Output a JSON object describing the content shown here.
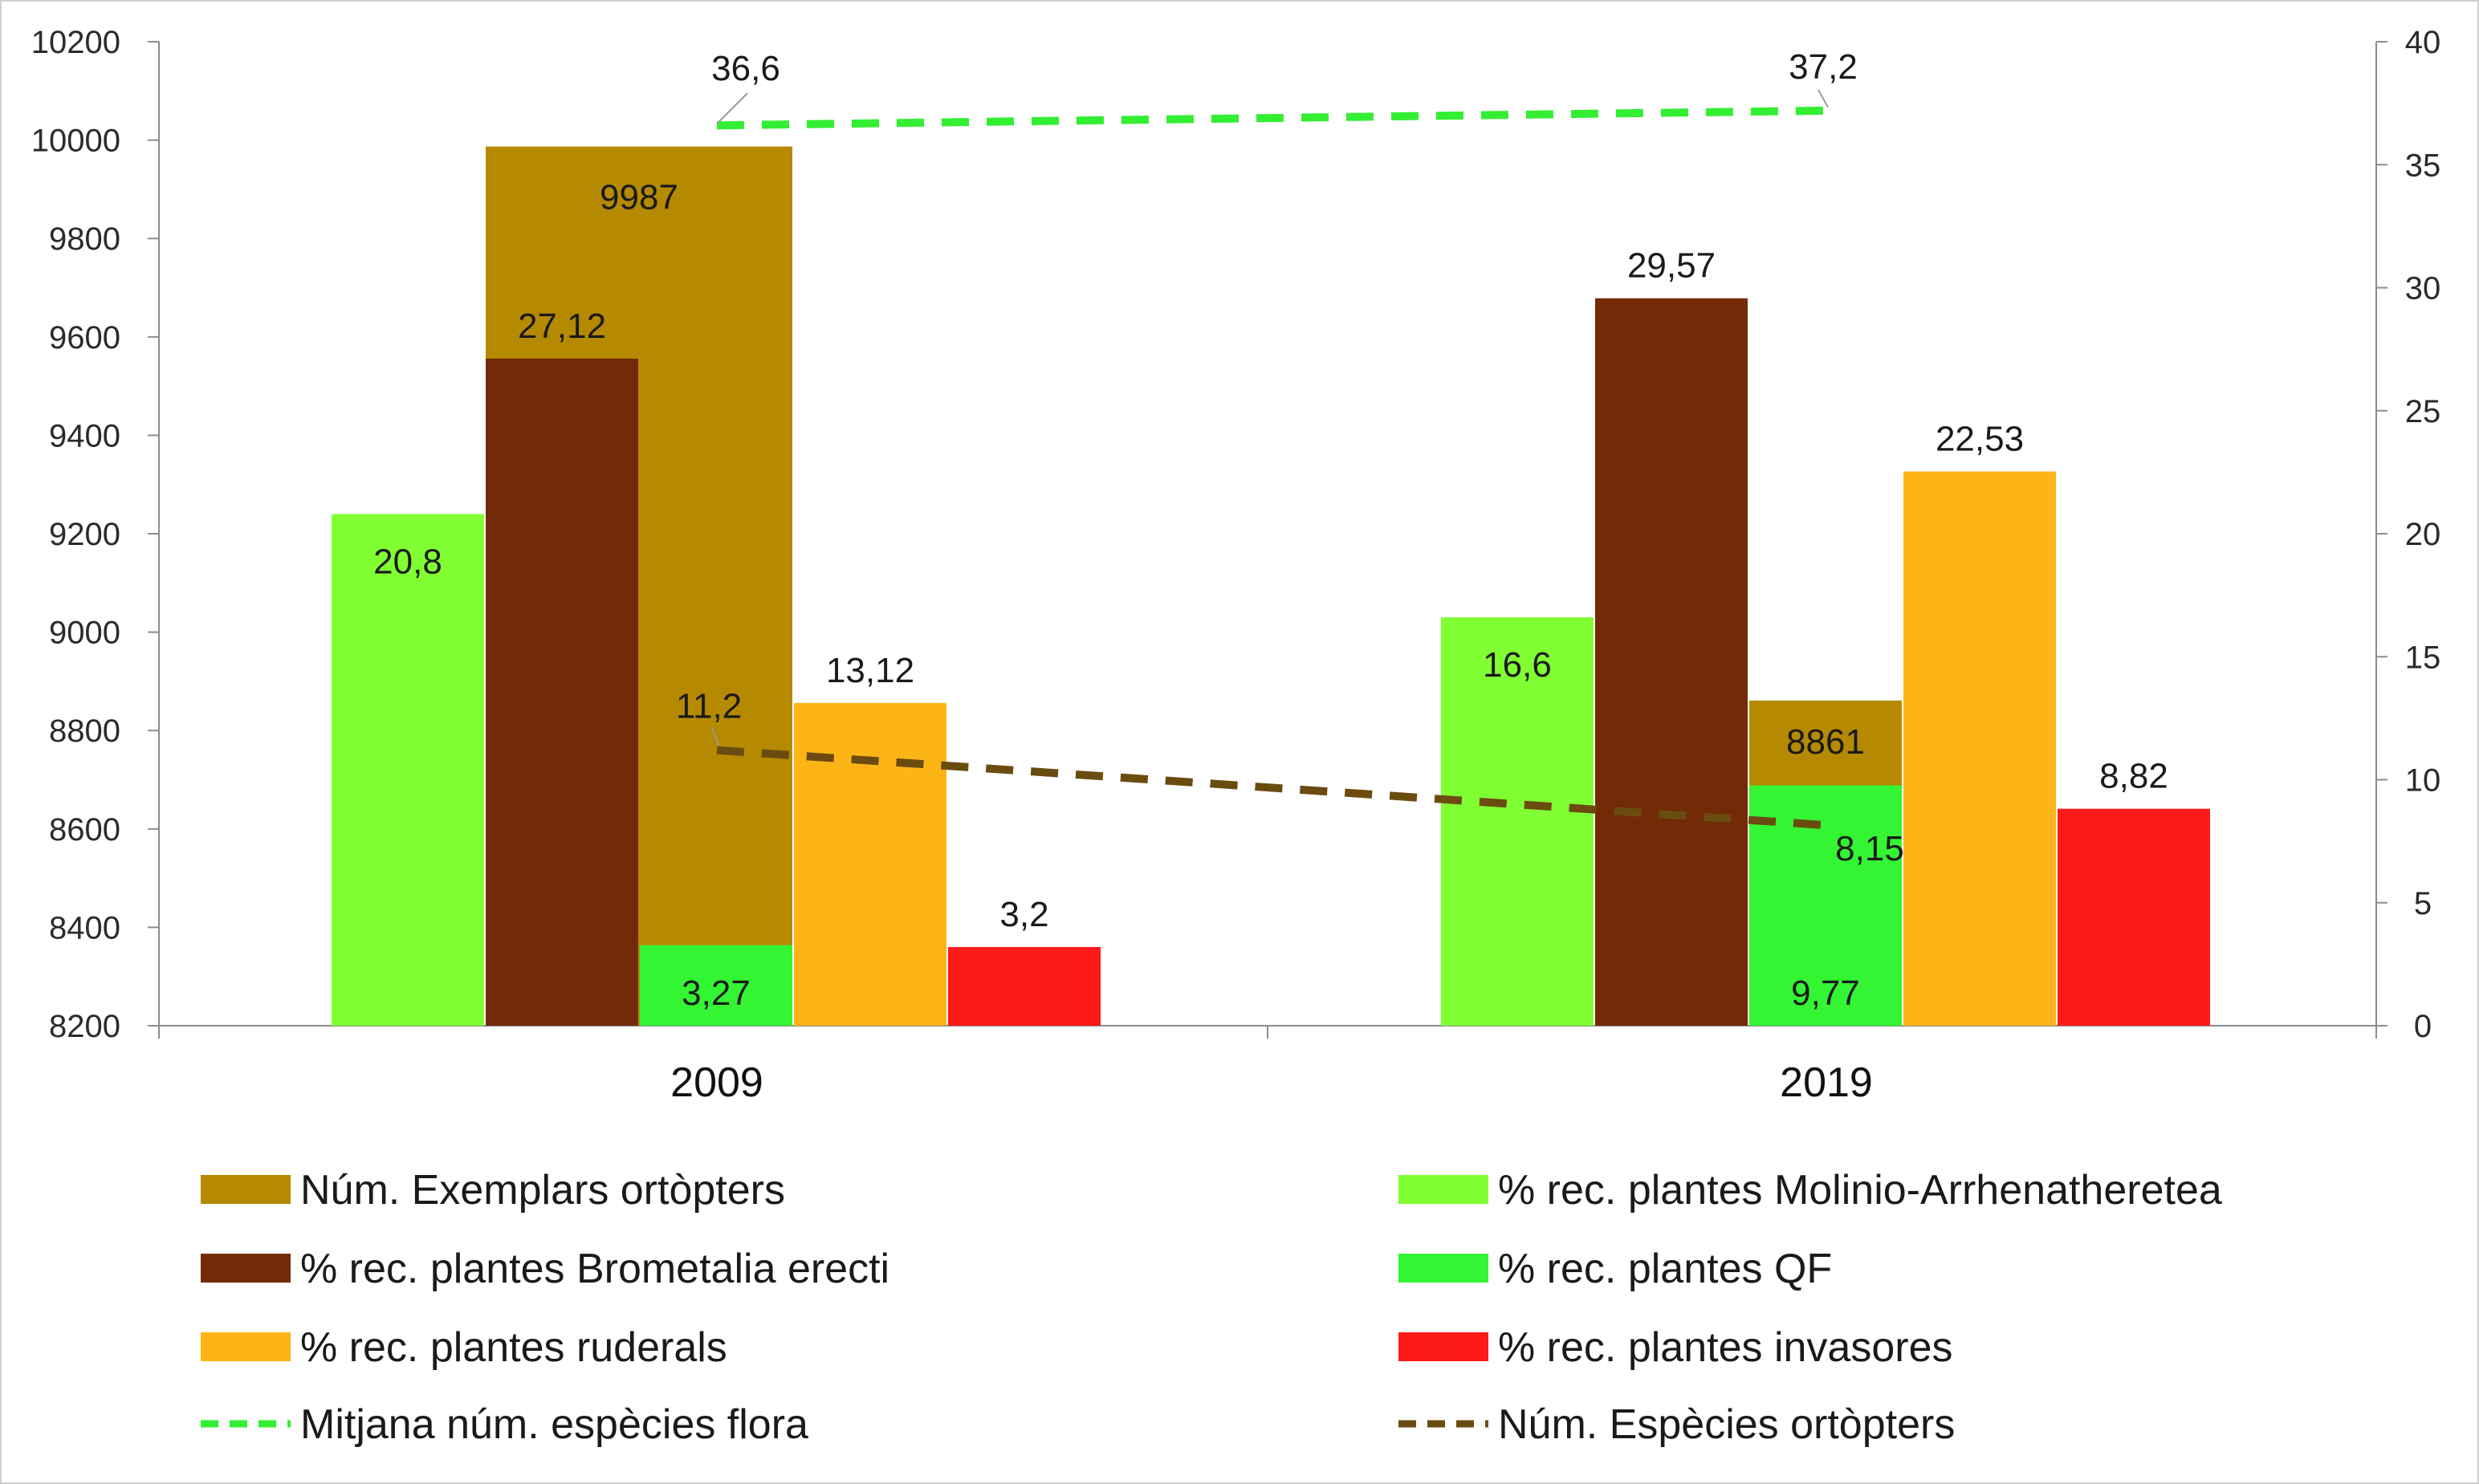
{
  "chart_data": {
    "type": "bar",
    "categories": [
      "2009",
      "2019"
    ],
    "axes": {
      "left": {
        "min": 8200,
        "max": 10200,
        "step": 200,
        "ticks": [
          "8200",
          "8400",
          "8600",
          "8800",
          "9000",
          "9200",
          "9400",
          "9600",
          "9800",
          "10000",
          "10200"
        ]
      },
      "right": {
        "min": 0,
        "max": 40,
        "step": 5,
        "ticks": [
          "0",
          "5",
          "10",
          "15",
          "20",
          "25",
          "30",
          "35",
          "40"
        ]
      }
    },
    "bar_series": [
      {
        "id": "exemplars",
        "name": "Núm. Exemplars ortòpters",
        "axis": "left",
        "color": "#B68A00",
        "slot": "wide",
        "values": [
          9987,
          8861
        ],
        "labels": [
          "9987",
          "8861"
        ],
        "label_pos": "inside_top"
      },
      {
        "id": "molinio",
        "name": "% rec. plantes Molinio-Arrhenatheretea",
        "axis": "right",
        "color": "#80FF33",
        "slot": 0,
        "values": [
          20.8,
          16.6
        ],
        "labels": [
          "20,8",
          "16,6"
        ],
        "label_pos": "inside_top"
      },
      {
        "id": "brometalia",
        "name": "% rec. plantes Brometalia erecti",
        "axis": "right",
        "color": "#732A06",
        "slot": 1,
        "values": [
          27.12,
          29.57
        ],
        "labels": [
          "27,12",
          "29,57"
        ],
        "label_pos": "above"
      },
      {
        "id": "qf",
        "name": "% rec. plantes QF",
        "axis": "right",
        "color": "#33F533",
        "slot": 2,
        "values": [
          3.27,
          9.77
        ],
        "labels": [
          "3,27",
          "9,77"
        ],
        "label_pos": "inside_bottom"
      },
      {
        "id": "ruderals",
        "name": "% rec. plantes ruderals",
        "axis": "right",
        "color": "#FDB417",
        "slot": 3,
        "values": [
          13.12,
          22.53
        ],
        "labels": [
          "13,12",
          "22,53"
        ],
        "label_pos": "above"
      },
      {
        "id": "invasores",
        "name": "% rec. plantes invasores",
        "axis": "right",
        "color": "#FF1A1A",
        "slot": 4,
        "values": [
          3.2,
          8.82
        ],
        "labels": [
          "3,2",
          "8,82"
        ],
        "label_pos": "above"
      }
    ],
    "line_series": [
      {
        "id": "mitjana",
        "name": "Mitjana núm. espècies flora",
        "axis": "right",
        "color": "#33EE33",
        "style": "dashed",
        "values": [
          36.6,
          37.2
        ],
        "labels": [
          "36,6",
          "37,2"
        ]
      },
      {
        "id": "especies",
        "name": "Núm. Espècies ortòpters",
        "axis": "right",
        "color": "#6B4C10",
        "style": "dashed",
        "values": [
          11.2,
          8.15
        ],
        "labels": [
          "11,2",
          "8,15"
        ]
      }
    ],
    "legend": {
      "position": "bottom",
      "items": [
        {
          "series": "exemplars",
          "symbol": "box"
        },
        {
          "series": "molinio",
          "symbol": "box"
        },
        {
          "series": "brometalia",
          "symbol": "box"
        },
        {
          "series": "qf",
          "symbol": "box"
        },
        {
          "series": "ruderals",
          "symbol": "box"
        },
        {
          "series": "invasores",
          "symbol": "box"
        },
        {
          "series": "mitjana",
          "symbol": "dash"
        },
        {
          "series": "especies",
          "symbol": "dash"
        }
      ]
    },
    "gridlines": false
  }
}
